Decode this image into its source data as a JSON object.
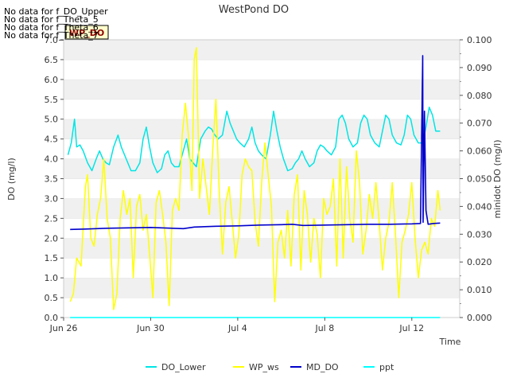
{
  "chart_data": {
    "type": "line",
    "title": "WestPond DO",
    "xlabel": "Time",
    "ylabel": "DO (mg/l)",
    "y2label": "minidot DO (mg/l)",
    "xlim_days": [
      0,
      18.2
    ],
    "x_ticks": [
      {
        "label": "Jun 26",
        "day": 0
      },
      {
        "label": "Jun 30",
        "day": 4
      },
      {
        "label": "Jul 4",
        "day": 8
      },
      {
        "label": "Jul 8",
        "day": 12
      },
      {
        "label": "Jul 12",
        "day": 16
      }
    ],
    "ylim": [
      0,
      7.0
    ],
    "y_ticks": [
      "0.0",
      "0.5",
      "1.0",
      "1.5",
      "2.0",
      "2.5",
      "3.0",
      "3.5",
      "4.0",
      "4.5",
      "5.0",
      "5.5",
      "6.0",
      "6.5",
      "7.0"
    ],
    "y2lim": [
      0,
      0.1
    ],
    "y2_ticks": [
      "0.000",
      "0.010",
      "0.020",
      "0.030",
      "0.040",
      "0.050",
      "0.060",
      "0.070",
      "0.080",
      "0.090",
      "0.100"
    ],
    "no_data_messages": [
      "No data for f_DO_Upper",
      "No data for f_Theta_5",
      "No data for f_Theta_6",
      "No data for f_Theta_7"
    ],
    "tooltip_label": "WP_DO",
    "legend": [
      {
        "name": "DO_Lower",
        "color": "#00e5e5"
      },
      {
        "name": "WP_ws",
        "color": "#ffff00"
      },
      {
        "name": "MD_DO",
        "color": "#0000cc"
      },
      {
        "name": "ppt",
        "color": "#00ffff"
      }
    ],
    "series": [
      {
        "name": "DO_Lower",
        "color": "#00e5e5",
        "x": [
          0.2,
          0.35,
          0.5,
          0.6,
          0.75,
          0.9,
          1.1,
          1.3,
          1.5,
          1.65,
          1.8,
          1.95,
          2.1,
          2.3,
          2.5,
          2.65,
          2.8,
          2.95,
          3.1,
          3.3,
          3.5,
          3.65,
          3.8,
          3.95,
          4.1,
          4.3,
          4.5,
          4.65,
          4.8,
          4.95,
          5.1,
          5.3,
          5.5,
          5.65,
          5.8,
          5.95,
          6.1,
          6.3,
          6.5,
          6.65,
          6.8,
          6.95,
          7.1,
          7.3,
          7.5,
          7.65,
          7.8,
          7.95,
          8.1,
          8.3,
          8.5,
          8.65,
          8.8,
          8.95,
          9.1,
          9.3,
          9.5,
          9.65,
          9.8,
          9.95,
          10.1,
          10.3,
          10.5,
          10.65,
          10.8,
          10.95,
          11.1,
          11.3,
          11.5,
          11.65,
          11.8,
          11.95,
          12.1,
          12.3,
          12.5,
          12.65,
          12.8,
          12.95,
          13.1,
          13.3,
          13.5,
          13.65,
          13.8,
          13.95,
          14.1,
          14.3,
          14.5,
          14.65,
          14.8,
          14.95,
          15.1,
          15.3,
          15.5,
          15.65,
          15.8,
          15.95,
          16.1,
          16.3,
          16.5,
          16.65,
          16.8,
          16.95,
          17.1,
          17.3
        ],
        "values": [
          4.1,
          4.4,
          5.0,
          4.3,
          4.35,
          4.2,
          3.9,
          3.7,
          4.0,
          4.2,
          4.0,
          3.9,
          3.85,
          4.3,
          4.6,
          4.3,
          4.1,
          3.9,
          3.7,
          3.7,
          3.9,
          4.5,
          4.8,
          4.3,
          3.9,
          3.65,
          3.75,
          4.1,
          4.2,
          3.9,
          3.8,
          3.8,
          4.2,
          4.5,
          4.0,
          3.9,
          3.8,
          4.5,
          4.7,
          4.8,
          4.75,
          4.6,
          4.5,
          4.6,
          5.2,
          4.9,
          4.7,
          4.5,
          4.4,
          4.3,
          4.5,
          4.8,
          4.4,
          4.2,
          4.1,
          4.0,
          4.6,
          5.2,
          4.7,
          4.3,
          4.0,
          3.7,
          3.75,
          3.9,
          4.0,
          4.2,
          4.0,
          3.8,
          3.9,
          4.2,
          4.35,
          4.3,
          4.2,
          4.1,
          4.3,
          5.0,
          5.1,
          4.9,
          4.5,
          4.3,
          4.4,
          4.9,
          5.1,
          5.0,
          4.6,
          4.4,
          4.3,
          4.7,
          5.1,
          5.0,
          4.6,
          4.4,
          4.35,
          4.6,
          5.1,
          5.0,
          4.6,
          4.4,
          4.4,
          4.8,
          5.3,
          5.1,
          4.7,
          4.7
        ]
      },
      {
        "name": "WP_ws",
        "color": "#ffff00",
        "x": [
          0.3,
          0.45,
          0.6,
          0.8,
          1.0,
          1.1,
          1.25,
          1.4,
          1.55,
          1.7,
          1.85,
          2.0,
          2.15,
          2.3,
          2.45,
          2.6,
          2.75,
          2.9,
          3.05,
          3.2,
          3.35,
          3.5,
          3.65,
          3.8,
          3.95,
          4.1,
          4.25,
          4.4,
          4.55,
          4.7,
          4.85,
          5.0,
          5.15,
          5.3,
          5.45,
          5.6,
          5.75,
          5.9,
          6.0,
          6.1,
          6.25,
          6.4,
          6.55,
          6.7,
          6.85,
          7.0,
          7.15,
          7.3,
          7.45,
          7.6,
          7.75,
          7.9,
          8.05,
          8.2,
          8.35,
          8.5,
          8.65,
          8.8,
          8.95,
          9.1,
          9.25,
          9.4,
          9.55,
          9.7,
          9.85,
          10.0,
          10.15,
          10.3,
          10.45,
          10.6,
          10.75,
          10.9,
          11.05,
          11.2,
          11.35,
          11.5,
          11.65,
          11.8,
          11.95,
          12.1,
          12.25,
          12.4,
          12.55,
          12.7,
          12.85,
          13.0,
          13.15,
          13.3,
          13.45,
          13.6,
          13.75,
          13.9,
          14.05,
          14.2,
          14.35,
          14.5,
          14.65,
          14.8,
          14.95,
          15.1,
          15.25,
          15.4,
          15.55,
          15.7,
          15.85,
          16.0,
          16.15,
          16.3,
          16.45,
          16.6,
          16.75,
          16.9,
          17.05,
          17.2,
          17.3
        ],
        "values": [
          0.4,
          0.6,
          1.5,
          1.3,
          3.3,
          3.6,
          2.0,
          1.8,
          2.6,
          3.0,
          4.0,
          2.5,
          2.0,
          0.2,
          0.6,
          2.5,
          3.2,
          2.6,
          3.0,
          1.0,
          2.8,
          3.1,
          2.2,
          2.6,
          1.6,
          0.5,
          2.9,
          3.2,
          2.6,
          1.9,
          0.3,
          2.7,
          3.0,
          2.7,
          4.6,
          5.4,
          4.5,
          3.2,
          6.5,
          6.8,
          3.0,
          4.0,
          3.3,
          2.6,
          4.2,
          5.5,
          3.2,
          1.6,
          2.9,
          3.3,
          2.4,
          1.5,
          2.1,
          3.6,
          4.0,
          3.8,
          3.7,
          2.4,
          1.8,
          3.4,
          4.4,
          3.6,
          2.8,
          0.4,
          1.9,
          2.2,
          1.5,
          2.7,
          1.3,
          3.1,
          3.6,
          1.2,
          3.2,
          2.6,
          1.4,
          2.5,
          2.1,
          1.0,
          3.0,
          2.6,
          2.8,
          3.5,
          1.3,
          4.0,
          1.5,
          3.8,
          2.5,
          1.9,
          4.2,
          3.4,
          1.6,
          2.2,
          3.1,
          2.5,
          3.4,
          2.4,
          1.2,
          2.0,
          2.4,
          3.4,
          2.1,
          0.5,
          1.9,
          2.2,
          2.6,
          3.4,
          2.0,
          1.0,
          1.7,
          1.9,
          1.6,
          2.5,
          2.3,
          3.2,
          2.7
        ]
      },
      {
        "name": "MD_DO",
        "color": "#0000cc",
        "x": [
          0.3,
          1.0,
          2.0,
          3.0,
          4.0,
          5.0,
          5.5,
          6.0,
          7.0,
          8.0,
          9.0,
          10.0,
          10.5,
          11.0,
          12.0,
          13.0,
          14.0,
          15.0,
          16.0,
          16.4,
          16.5,
          16.52,
          16.58,
          16.65,
          16.75,
          17.0,
          17.3
        ],
        "values": [
          2.22,
          2.23,
          2.25,
          2.26,
          2.27,
          2.25,
          2.24,
          2.28,
          2.3,
          2.31,
          2.33,
          2.34,
          2.35,
          2.32,
          2.33,
          2.34,
          2.35,
          2.35,
          2.36,
          2.37,
          6.6,
          2.4,
          5.2,
          2.7,
          2.35,
          2.37,
          2.38
        ]
      },
      {
        "name": "ppt",
        "color": "#00ffff",
        "x": [
          0.3,
          17.3
        ],
        "values": [
          0.0,
          0.0
        ]
      }
    ]
  }
}
